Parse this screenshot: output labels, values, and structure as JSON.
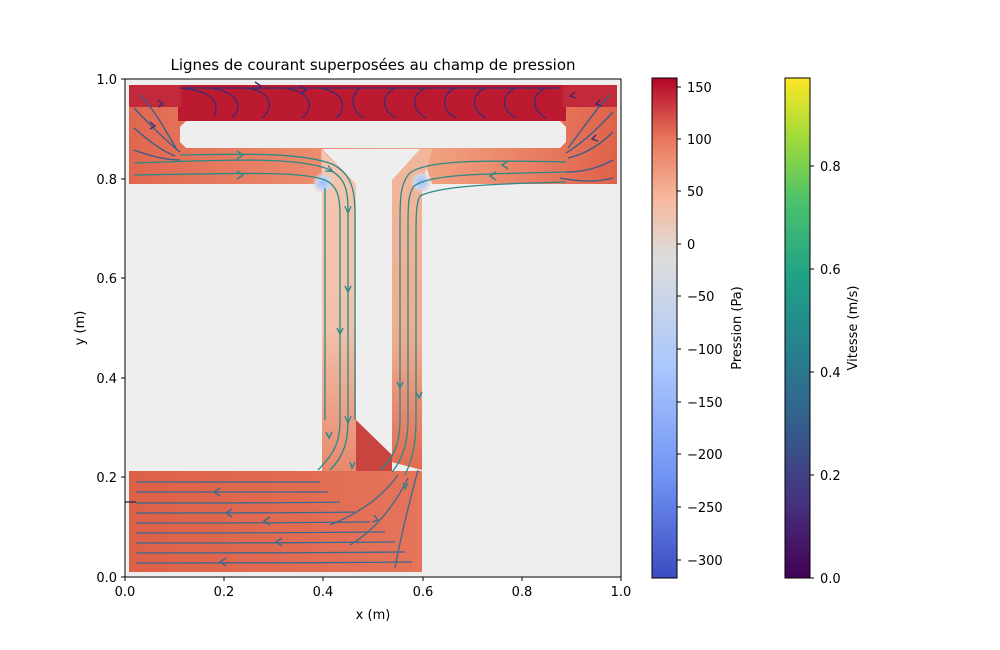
{
  "chart_data": {
    "type": "streamplot",
    "title": "Lignes de courant superposées au champ de pression",
    "xlabel": "x (m)",
    "ylabel": "y (m)",
    "xlim": [
      0.0,
      1.0
    ],
    "ylim": [
      0.0,
      1.0
    ],
    "x_ticks": [
      "0.0",
      "0.2",
      "0.4",
      "0.6",
      "0.8",
      "1.0"
    ],
    "y_ticks": [
      "0.0",
      "0.2",
      "0.4",
      "0.6",
      "0.8",
      "1.0"
    ],
    "grid": false,
    "background_color": "#eeeeee",
    "pressure_colorbar": {
      "label": "Pression (Pa)",
      "colormap": "coolwarm",
      "range": [
        -318,
        158
      ],
      "ticks": [
        "150",
        "100",
        "50",
        "0",
        "−50",
        "−100",
        "−150",
        "−200",
        "−250",
        "−300"
      ],
      "tick_values": [
        150,
        100,
        50,
        0,
        -50,
        -100,
        -150,
        -200,
        -250,
        -300
      ]
    },
    "velocity_colorbar": {
      "label": "Vitesse (m/s)",
      "colormap": "viridis",
      "range": [
        0.0,
        0.97
      ],
      "ticks": [
        "0.0",
        "0.2",
        "0.4",
        "0.6",
        "0.8"
      ],
      "tick_values": [
        0.0,
        0.2,
        0.4,
        0.6,
        0.8
      ]
    },
    "domain_regions": [
      {
        "name": "top-bar",
        "x": [
          0.01,
          0.99
        ],
        "y": [
          0.79,
          0.99
        ],
        "pressure": 100
      },
      {
        "name": "top-bar-upper-strip",
        "x": [
          0.11,
          0.89
        ],
        "y": [
          0.92,
          0.99
        ],
        "pressure": 158
      },
      {
        "name": "left-vertical-channel",
        "x": [
          0.4,
          0.46
        ],
        "y": [
          0.22,
          0.86
        ],
        "pressure": 0
      },
      {
        "name": "right-vertical-channel",
        "x": [
          0.54,
          0.6
        ],
        "y": [
          0.22,
          0.86
        ],
        "pressure": 0
      },
      {
        "name": "bottom-left-block",
        "x": [
          0.01,
          0.6
        ],
        "y": [
          0.01,
          0.21
        ],
        "pressure": 80
      }
    ],
    "low_pressure_spots": [
      {
        "x": 0.4,
        "y": 0.79,
        "pressure": -150
      },
      {
        "x": 0.6,
        "y": 0.79,
        "pressure": -150
      }
    ]
  }
}
